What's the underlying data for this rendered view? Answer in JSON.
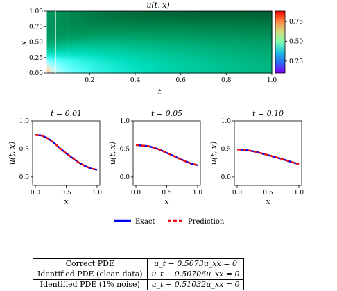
{
  "heatmap": {
    "title": "u(t, x)",
    "xlabel": "t",
    "ylabel": "x",
    "xticks": [
      "0.2",
      "0.4",
      "0.6",
      "0.8",
      "1.0"
    ],
    "yticks": [
      "0.00",
      "0.25",
      "0.50",
      "0.75",
      "1.00"
    ],
    "colorbar_ticks": [
      "0.25",
      "0.50",
      "0.75"
    ],
    "colormap": "rainbow"
  },
  "subplots": [
    {
      "title": "t = 0.01",
      "xlabel": "x",
      "ylabel": "u(t, x)"
    },
    {
      "title": "t = 0.05",
      "xlabel": "x",
      "ylabel": "u(t, x)"
    },
    {
      "title": "t = 0.10",
      "xlabel": "x",
      "ylabel": "u(t, x)"
    }
  ],
  "subplot_xticks": [
    "0.0",
    "0.5",
    "1.0"
  ],
  "subplot_yticks": [
    "0.0",
    "0.5",
    "1.0"
  ],
  "legend": {
    "exact": "Exact",
    "prediction": "Prediction"
  },
  "colors": {
    "exact": "#0000ee",
    "prediction": "#ee1111"
  },
  "table": [
    {
      "label": "Correct PDE",
      "equation": "u_t − 0.5073u_xx = 0"
    },
    {
      "label": "Identified PDE (clean data)",
      "equation": "u_t − 0.50706u_xx = 0"
    },
    {
      "label": "Identified PDE (1% noise)",
      "equation": "u_t − 0.51032u_xx = 0"
    }
  ],
  "chart_data": [
    {
      "type": "heatmap",
      "title": "u(t, x)",
      "xlabel": "t",
      "ylabel": "x",
      "xlim": [
        0.01,
        1.0
      ],
      "ylim": [
        0.0,
        1.0
      ],
      "colorbar_range": [
        0.1,
        0.88
      ],
      "marked_times": [
        0.01,
        0.05,
        0.1
      ]
    },
    {
      "type": "line",
      "title": "t = 0.01",
      "xlabel": "x",
      "ylabel": "u(t, x)",
      "ylim": [
        -0.15,
        1.0
      ],
      "x": [
        0.0,
        0.1,
        0.2,
        0.3,
        0.4,
        0.5,
        0.6,
        0.7,
        0.8,
        0.9,
        1.0
      ],
      "series": [
        {
          "name": "Exact",
          "values": [
            0.75,
            0.74,
            0.69,
            0.61,
            0.51,
            0.42,
            0.34,
            0.26,
            0.2,
            0.15,
            0.13
          ]
        },
        {
          "name": "Prediction",
          "values": [
            0.75,
            0.74,
            0.69,
            0.61,
            0.51,
            0.42,
            0.34,
            0.26,
            0.2,
            0.15,
            0.13
          ]
        }
      ]
    },
    {
      "type": "line",
      "title": "t = 0.05",
      "xlabel": "x",
      "ylabel": "u(t, x)",
      "ylim": [
        -0.15,
        1.0
      ],
      "x": [
        0.0,
        0.1,
        0.2,
        0.3,
        0.4,
        0.5,
        0.6,
        0.7,
        0.8,
        0.9,
        1.0
      ],
      "series": [
        {
          "name": "Exact",
          "values": [
            0.57,
            0.56,
            0.55,
            0.52,
            0.48,
            0.43,
            0.38,
            0.33,
            0.28,
            0.24,
            0.21
          ]
        },
        {
          "name": "Prediction",
          "values": [
            0.57,
            0.56,
            0.55,
            0.52,
            0.48,
            0.43,
            0.38,
            0.33,
            0.28,
            0.24,
            0.21
          ]
        }
      ]
    },
    {
      "type": "line",
      "title": "t = 0.10",
      "xlabel": "x",
      "ylabel": "u(t, x)",
      "ylim": [
        -0.15,
        1.0
      ],
      "x": [
        0.0,
        0.1,
        0.2,
        0.3,
        0.4,
        0.5,
        0.6,
        0.7,
        0.8,
        0.9,
        1.0
      ],
      "series": [
        {
          "name": "Exact",
          "values": [
            0.49,
            0.485,
            0.47,
            0.45,
            0.42,
            0.39,
            0.36,
            0.33,
            0.295,
            0.26,
            0.23
          ]
        },
        {
          "name": "Prediction",
          "values": [
            0.49,
            0.485,
            0.47,
            0.45,
            0.42,
            0.39,
            0.36,
            0.33,
            0.295,
            0.26,
            0.23
          ]
        }
      ]
    }
  ]
}
